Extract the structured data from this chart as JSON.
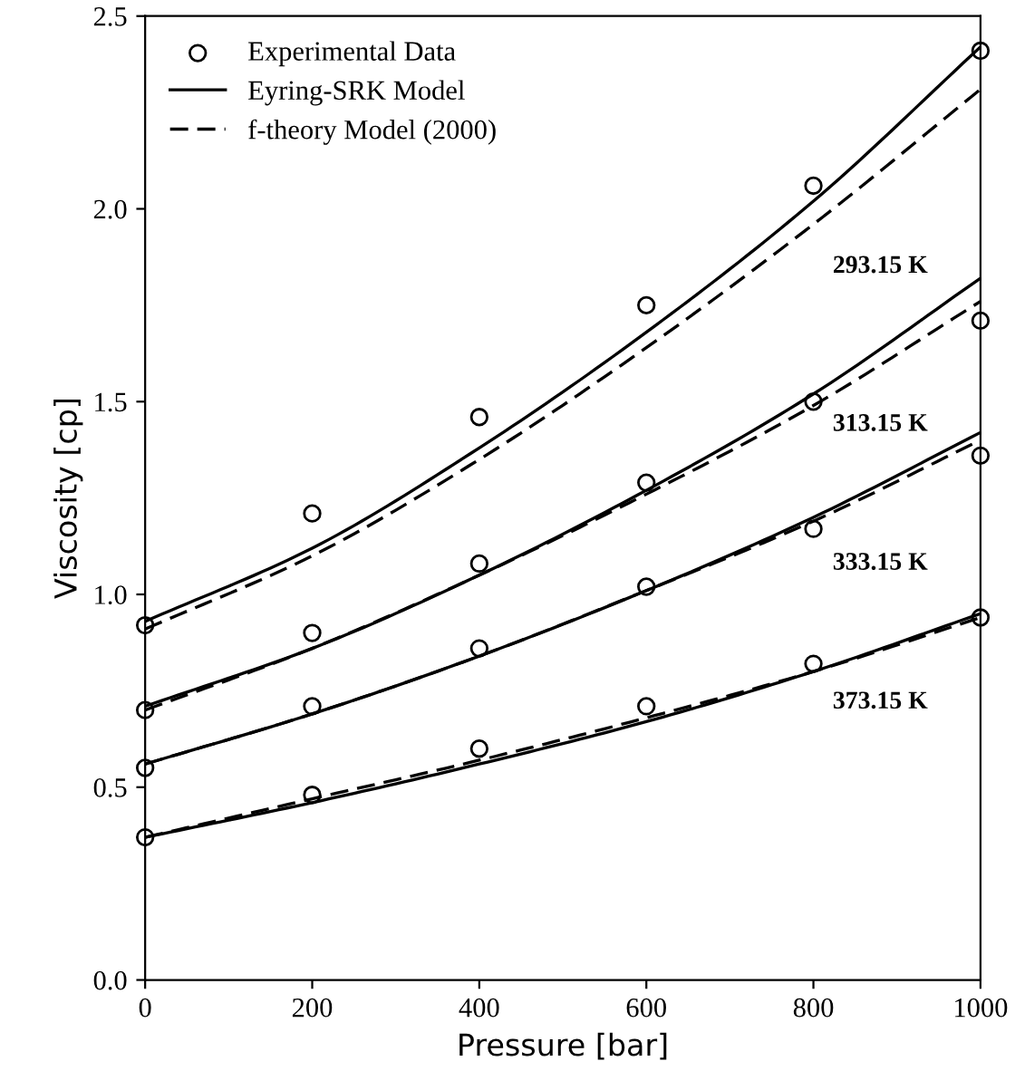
{
  "chart_data": {
    "type": "line",
    "xlabel": "Pressure [bar]",
    "ylabel": "Viscosity [cp]",
    "xlim": [
      0,
      1000
    ],
    "ylim": [
      0,
      2.5
    ],
    "xticks": [
      0,
      200,
      400,
      600,
      800,
      1000
    ],
    "yticks": [
      {
        "value": 0,
        "label": "0.0"
      },
      {
        "value": 0.5,
        "label": "0.5"
      },
      {
        "value": 1,
        "label": "1.0"
      },
      {
        "value": 1.5,
        "label": "1.5"
      },
      {
        "value": 2,
        "label": "2.0"
      },
      {
        "value": 2.5,
        "label": "2.5"
      }
    ],
    "grid": false,
    "legend": "top left",
    "x": [
      0,
      200,
      400,
      600,
      800,
      1000
    ],
    "series": [
      {
        "name": "Experimental Data",
        "type": "scatter",
        "marker": "circle",
        "color": "#000000",
        "values": [
          0.92,
          1.21,
          1.46,
          1.75,
          2.06,
          2.41
        ]
      },
      {
        "type": "scatter",
        "marker": "circle",
        "color": "#000000",
        "values": [
          0.7,
          0.9,
          1.08,
          1.29,
          1.5,
          1.71
        ]
      },
      {
        "type": "scatter",
        "marker": "circle",
        "color": "#000000",
        "values": [
          0.55,
          0.71,
          0.86,
          1.02,
          1.17,
          1.36
        ]
      },
      {
        "type": "scatter",
        "marker": "circle",
        "color": "#000000",
        "values": [
          0.37,
          0.48,
          0.6,
          0.71,
          0.82,
          0.94
        ]
      },
      {
        "name": "Eyring-SRK Model",
        "line_style": "solid",
        "color": "#000000",
        "values": [
          0.93,
          1.12,
          1.38,
          1.68,
          2.02,
          2.42
        ]
      },
      {
        "line_style": "solid",
        "color": "#000000",
        "values": [
          0.71,
          0.86,
          1.05,
          1.27,
          1.52,
          1.82
        ]
      },
      {
        "line_style": "solid",
        "color": "#000000",
        "values": [
          0.56,
          0.69,
          0.84,
          1.01,
          1.2,
          1.42
        ]
      },
      {
        "line_style": "solid",
        "color": "#000000",
        "values": [
          0.37,
          0.46,
          0.56,
          0.67,
          0.8,
          0.95
        ]
      },
      {
        "name": "f-theory Model (2000)",
        "line_style": "dashed",
        "color": "#000000",
        "values": [
          0.91,
          1.1,
          1.35,
          1.64,
          1.96,
          2.31
        ]
      },
      {
        "line_style": "dashed",
        "color": "#000000",
        "values": [
          0.7,
          0.86,
          1.05,
          1.26,
          1.49,
          1.76
        ]
      },
      {
        "line_style": "dashed",
        "color": "#000000",
        "values": [
          0.56,
          0.69,
          0.84,
          1.01,
          1.19,
          1.4
        ]
      },
      {
        "line_style": "dashed",
        "color": "#000000",
        "values": [
          0.37,
          0.47,
          0.57,
          0.68,
          0.8,
          0.94
        ]
      }
    ],
    "annotations": [
      "293.15 K",
      "313.15 K",
      "333.15 K",
      "373.15 K"
    ]
  }
}
